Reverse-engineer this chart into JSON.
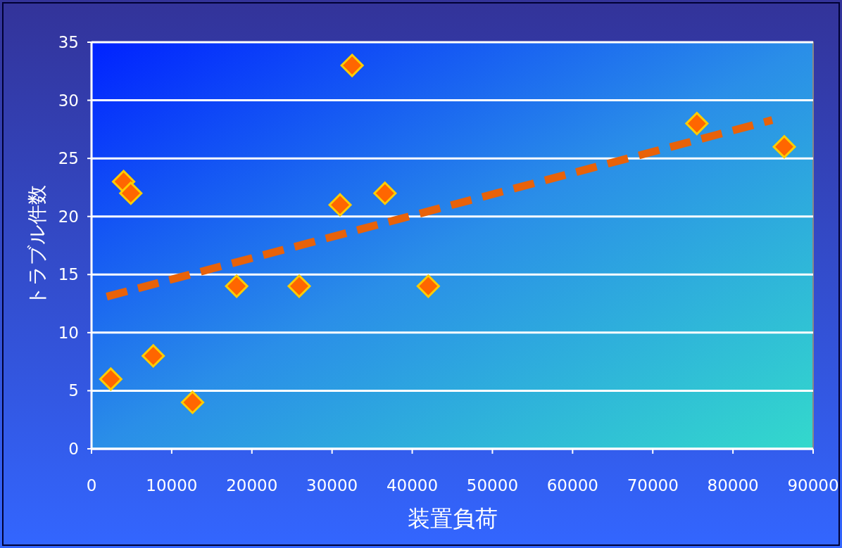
{
  "chart_data": {
    "type": "scatter",
    "xlabel": "装置負荷",
    "ylabel": "トラブル件数",
    "xlim": [
      0,
      90000
    ],
    "xticks": [
      0,
      10000,
      20000,
      30000,
      40000,
      50000,
      60000,
      70000,
      80000,
      90000
    ],
    "ylim": [
      0,
      35
    ],
    "yticks": [
      0,
      5,
      10,
      15,
      20,
      25,
      30,
      35
    ],
    "grid": "y",
    "series": [
      {
        "type": "scatter",
        "color": "#ff6600",
        "marker": "diamond",
        "x": [
          2400,
          4000,
          4900,
          7700,
          12600,
          18100,
          25900,
          31000,
          32500,
          36600,
          42000,
          75500,
          86400
        ],
        "values": [
          6,
          23,
          22,
          8,
          4,
          14,
          14,
          21,
          33,
          22,
          14,
          28,
          26
        ]
      },
      {
        "type": "line",
        "color": "#e8620a",
        "marker": "none",
        "line_style": "dashed",
        "x": [
          1900,
          84900
        ],
        "values": [
          13.1,
          28.3
        ]
      }
    ]
  }
}
